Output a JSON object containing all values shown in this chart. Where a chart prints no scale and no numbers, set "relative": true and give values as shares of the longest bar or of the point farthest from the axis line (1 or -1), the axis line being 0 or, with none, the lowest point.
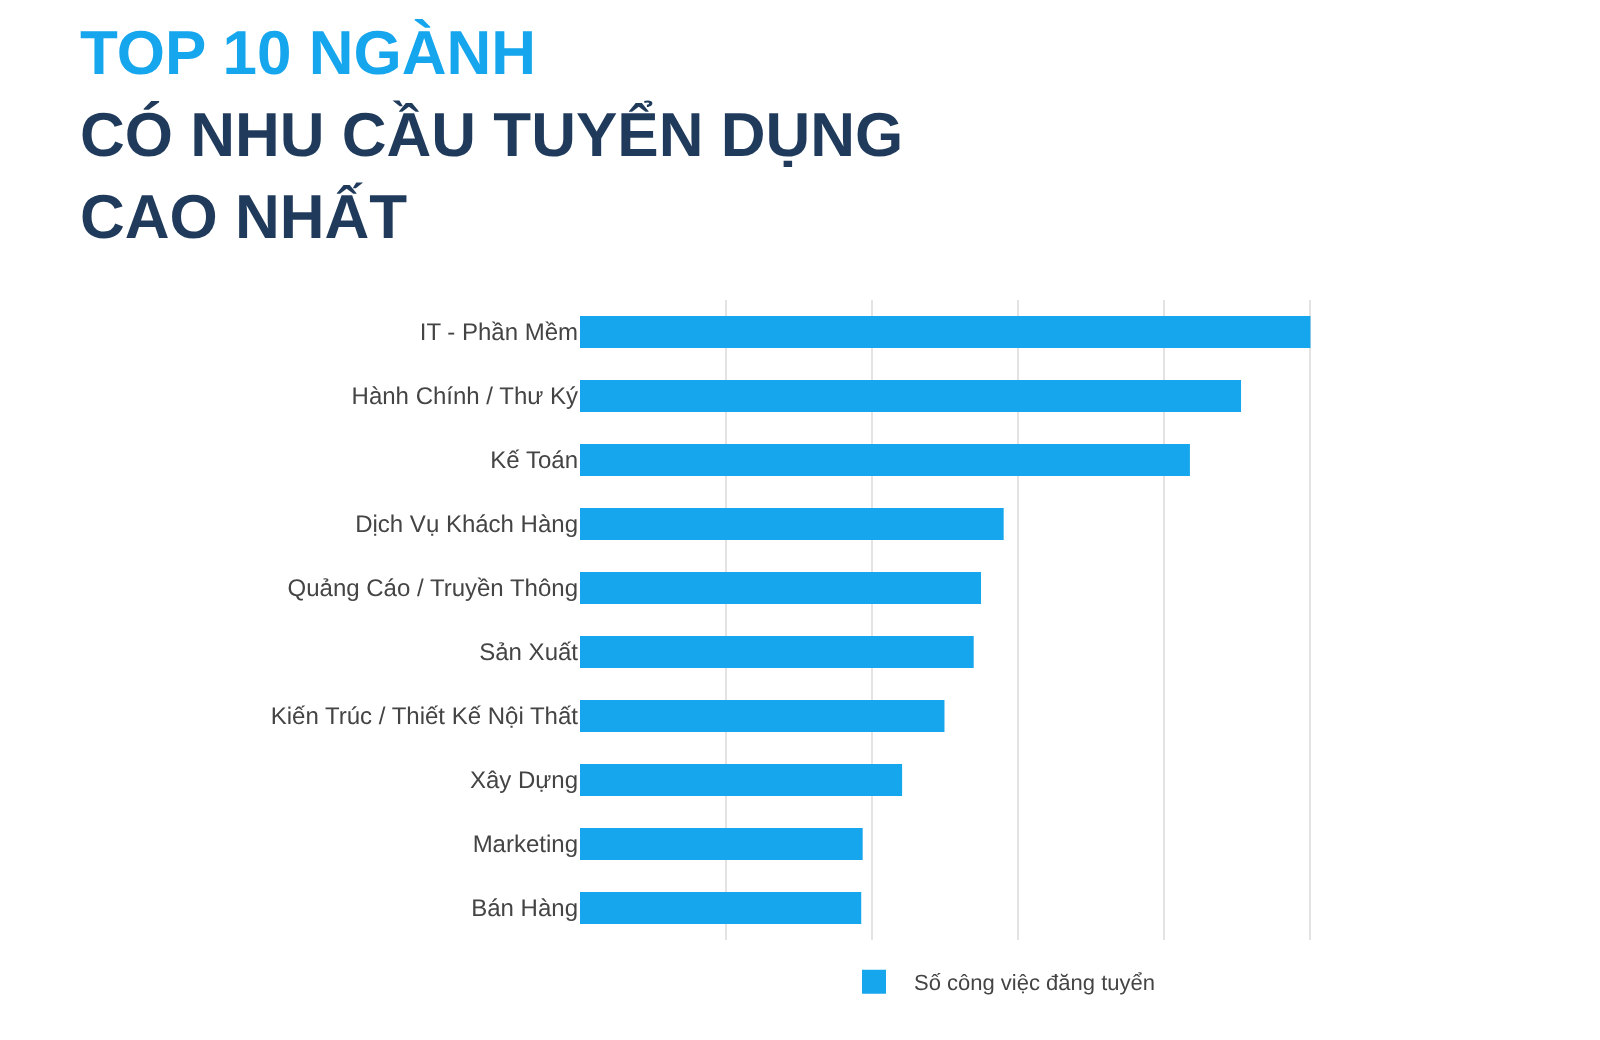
{
  "chart_data": {
    "type": "bar",
    "orientation": "horizontal",
    "relative": true,
    "title": "TOP 10 NGÀNH\nCÓ NHU CẦU TUYỂN DỤNG\nCAO NHẤT",
    "categories": [
      "IT - Phần Mềm",
      "Hành Chính / Thư Ký",
      "Kế Toán",
      "Dịch Vụ Khách Hàng",
      "Quảng Cáo / Truyền Thông",
      "Sản Xuất",
      "Kiến Trúc / Thiết Kế Nội Thất",
      "Xây Dựng",
      "Marketing",
      "Bán Hàng"
    ],
    "series": [
      {
        "name": "Số công việc đăng tuyển",
        "color": "#16a6ed",
        "values": [
          1,
          0.905,
          0.835,
          0.58,
          0.549,
          0.539,
          0.499,
          0.441,
          0.387,
          0.385
        ]
      }
    ],
    "grid": "x",
    "legend": "bottom"
  }
}
